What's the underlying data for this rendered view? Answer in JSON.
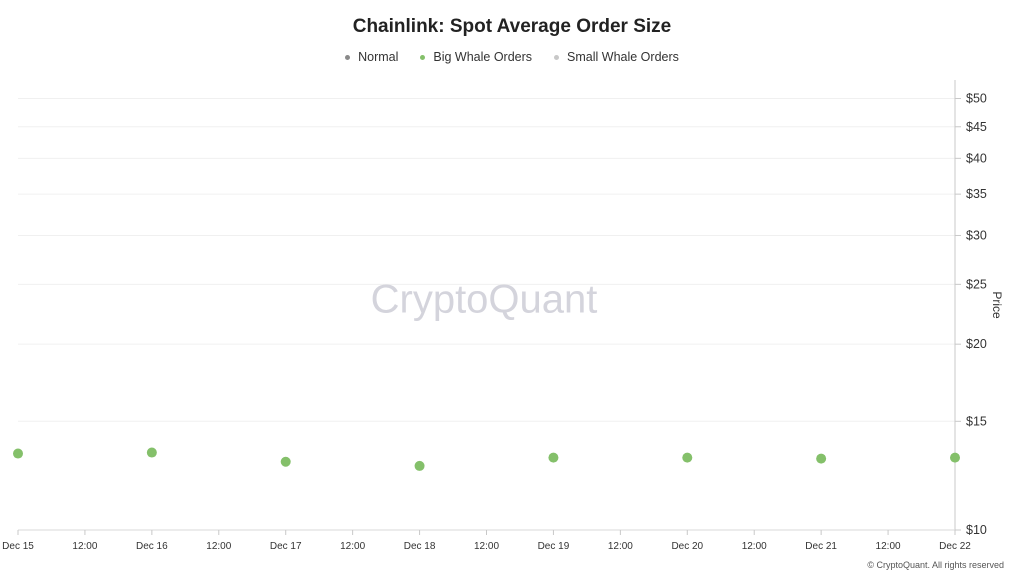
{
  "title": "Chainlink: Spot Average Order Size",
  "legend": [
    {
      "label": "Normal",
      "color": "#8a8a8a"
    },
    {
      "label": "Big Whale Orders",
      "color": "#84c06a"
    },
    {
      "label": "Small Whale Orders",
      "color": "#c8c8c8"
    }
  ],
  "watermark": "CryptoQuant",
  "footer": "© CryptoQuant. All rights reserved",
  "chart_data": {
    "type": "scatter",
    "title": "Chainlink: Spot Average Order Size",
    "ylabel": "Price",
    "xlabel": "",
    "y_scale": "log",
    "ylim": [
      10,
      52
    ],
    "xlim": [
      "Dec 15",
      "Dec 22"
    ],
    "y_ticks": [
      "$10",
      "$15",
      "$20",
      "$25",
      "$30",
      "$35",
      "$40",
      "$45",
      "$50"
    ],
    "y_tick_values": [
      10,
      15,
      20,
      25,
      30,
      35,
      40,
      45,
      50
    ],
    "x_ticks": [
      "Dec 15",
      "12:00",
      "Dec 16",
      "12:00",
      "Dec 17",
      "12:00",
      "Dec 18",
      "12:00",
      "Dec 19",
      "12:00",
      "Dec 20",
      "12:00",
      "Dec 21",
      "12:00",
      "Dec 22"
    ],
    "grid": true,
    "legend_position": "top-center",
    "series": [
      {
        "name": "Big Whale Orders",
        "color": "#84c06a",
        "points": [
          {
            "x": "Dec 15",
            "y": 13.3
          },
          {
            "x": "Dec 16",
            "y": 13.35
          },
          {
            "x": "Dec 17",
            "y": 12.9
          },
          {
            "x": "Dec 18",
            "y": 12.7
          },
          {
            "x": "Dec 19",
            "y": 13.1
          },
          {
            "x": "Dec 20",
            "y": 13.1
          },
          {
            "x": "Dec 21",
            "y": 13.05
          },
          {
            "x": "Dec 22",
            "y": 13.1
          }
        ]
      }
    ]
  }
}
